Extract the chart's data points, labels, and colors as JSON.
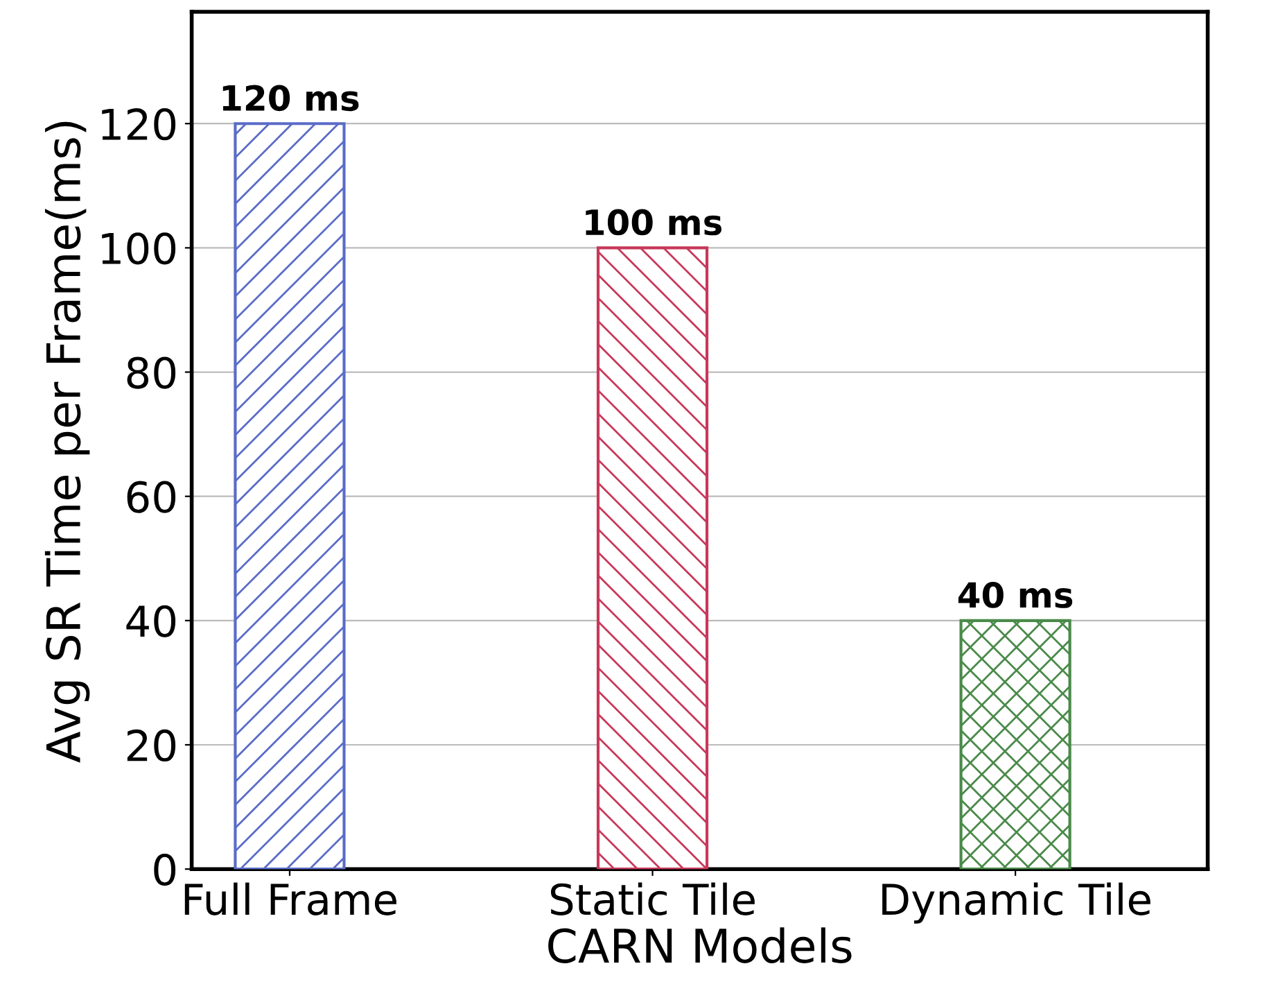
{
  "chart_data": {
    "type": "bar",
    "xlabel": "CARN Models",
    "ylabel": "Avg SR Time per Frame(ms)",
    "categories": [
      "Full Frame",
      "Static Tile",
      "Dynamic Tile"
    ],
    "values": [
      120,
      100,
      40
    ],
    "colors": [
      "#5a6cc8",
      "#c8385a",
      "#4a8a4a"
    ],
    "value_labels": [
      "120 ms",
      "100 ms",
      "40 ms"
    ],
    "ylim": [
      0,
      138
    ],
    "yticks": [
      0,
      20,
      40,
      60,
      80,
      100,
      120
    ],
    "grid": "y"
  }
}
